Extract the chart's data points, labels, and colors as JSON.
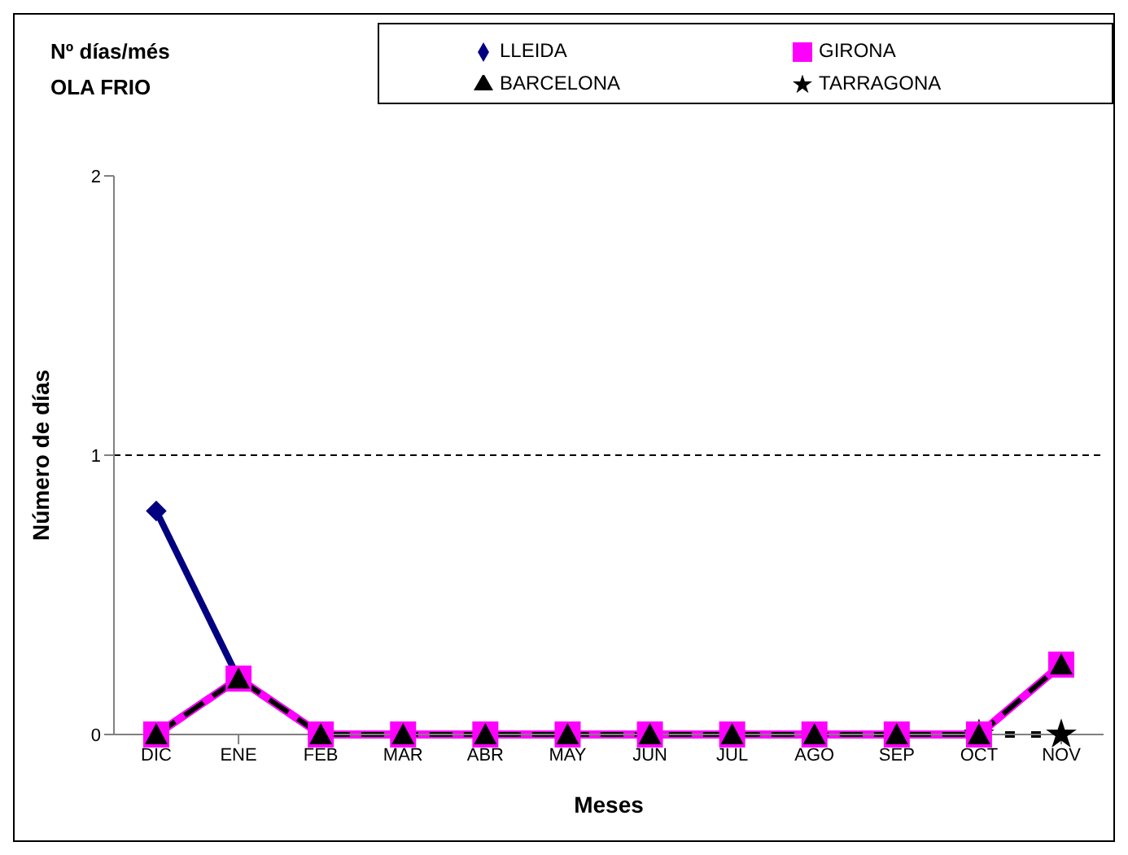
{
  "chart_data": {
    "type": "line",
    "title": "Nº días/més\nOLA FRIO",
    "xlabel": "Meses",
    "ylabel": "Número de días",
    "categories": [
      "DIC",
      "ENE",
      "FEB",
      "MAR",
      "ABR",
      "MAY",
      "JUN",
      "JUL",
      "AGO",
      "SEP",
      "OCT",
      "NOV"
    ],
    "series": [
      {
        "name": "LLEIDA",
        "color": "#000080",
        "marker": "diamond",
        "line_style": "solid",
        "values": [
          0.8,
          0.2,
          null,
          null,
          null,
          null,
          null,
          null,
          null,
          null,
          null,
          null
        ]
      },
      {
        "name": "GIRONA",
        "color": "#ff00ff",
        "marker": "square",
        "line_style": "solid",
        "values": [
          0,
          0.2,
          0,
          0,
          0,
          0,
          0,
          0,
          0,
          0,
          0,
          0.25
        ]
      },
      {
        "name": "BARCELONA",
        "color": "#000000",
        "marker": "triangle",
        "line_style": "dashed",
        "values": [
          0,
          0.2,
          0,
          0,
          0,
          0,
          0,
          0,
          0,
          0,
          0,
          0.25
        ]
      },
      {
        "name": "TARRAGONA",
        "color": "#000000",
        "marker": "star",
        "line_style": "dotted",
        "values": [
          null,
          null,
          null,
          null,
          null,
          null,
          null,
          null,
          null,
          null,
          0,
          0
        ]
      }
    ],
    "ylim": [
      0,
      2
    ],
    "yticks": [
      0,
      1,
      2
    ],
    "ref_lines": [
      {
        "axis": "y",
        "value": 1,
        "line_style": "dashed",
        "color": "#000000"
      }
    ],
    "legend": "top right"
  }
}
